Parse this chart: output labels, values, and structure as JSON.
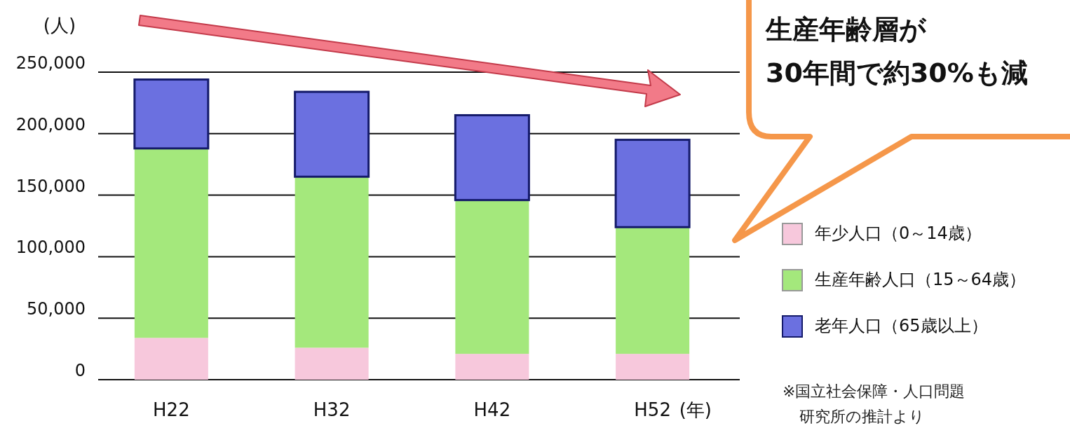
{
  "chart_data": {
    "type": "bar",
    "stacked": true,
    "categories": [
      "H22",
      "H32",
      "H42",
      "H52"
    ],
    "xlabel": "(年)",
    "ylabel": "(人)",
    "ylim": [
      0,
      250000
    ],
    "yticks": [
      {
        "value": 0,
        "label": "0"
      },
      {
        "value": 50000,
        "label": "50,000"
      },
      {
        "value": 100000,
        "label": "100,000"
      },
      {
        "value": 150000,
        "label": "150,000"
      },
      {
        "value": 200000,
        "label": "200,000"
      },
      {
        "value": 250000,
        "label": "250,000"
      }
    ],
    "grid": "y",
    "legend": "right",
    "series": [
      {
        "name": "年少人口（0～14歳）",
        "color": "#f7c8dc",
        "values": [
          34000,
          26000,
          21000,
          21000
        ]
      },
      {
        "name": "生産年齢人口（15～64歳）",
        "color": "#a4e87c",
        "values": [
          154000,
          139000,
          125000,
          103000
        ]
      },
      {
        "name": "老年人口（65歳以上）",
        "color": "#6b70e0",
        "values": [
          56000,
          69000,
          69000,
          71000
        ]
      }
    ],
    "annotations": [
      "生産年齢層が\n30年間で約30%も減",
      "※国立社会保障・人口問題",
      "研究所の推計より"
    ]
  }
}
